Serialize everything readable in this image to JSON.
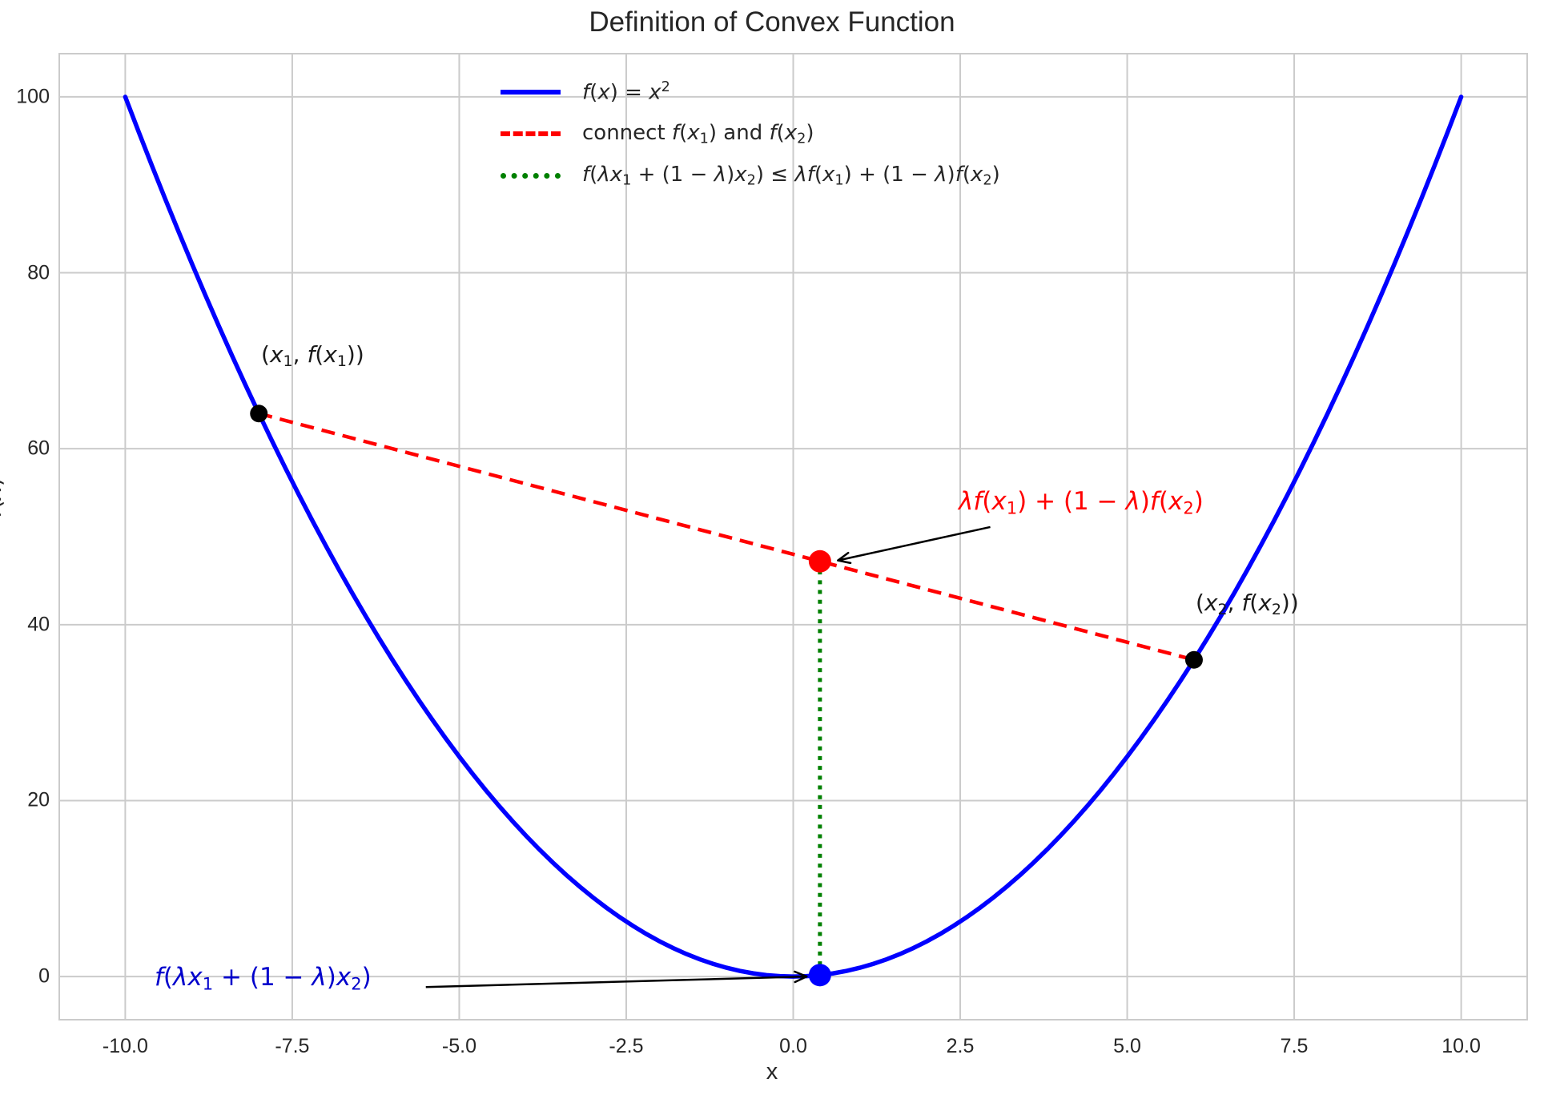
{
  "chart_data": {
    "type": "line",
    "title": "Definition of Convex Function",
    "xlabel": "x",
    "ylabel": "f(x)",
    "xlim": [
      -11,
      11
    ],
    "ylim": [
      -5,
      105
    ],
    "grid": true,
    "legend_position": "upper center-left, no frame",
    "x_ticks": [
      {
        "v": -10,
        "label": "-10.0"
      },
      {
        "v": -7.5,
        "label": "-7.5"
      },
      {
        "v": -5,
        "label": "-5.0"
      },
      {
        "v": -2.5,
        "label": "-2.5"
      },
      {
        "v": 0,
        "label": "0.0"
      },
      {
        "v": 2.5,
        "label": "2.5"
      },
      {
        "v": 5,
        "label": "5.0"
      },
      {
        "v": 7.5,
        "label": "7.5"
      },
      {
        "v": 10,
        "label": "10.0"
      }
    ],
    "y_ticks": [
      {
        "v": 0,
        "label": "0"
      },
      {
        "v": 20,
        "label": "20"
      },
      {
        "v": 40,
        "label": "40"
      },
      {
        "v": 60,
        "label": "60"
      },
      {
        "v": 80,
        "label": "80"
      },
      {
        "v": 100,
        "label": "100"
      }
    ],
    "lambda": 0.4,
    "x1": -8,
    "f_x1": 64,
    "x2": 6,
    "f_x2": 36,
    "x_combo": 0.4,
    "f_of_combo": 0.16,
    "chord_value": 47.2,
    "series": [
      {
        "name": "f(x) = x^2",
        "kind": "function",
        "fn": "square",
        "x_range": [
          -10,
          10
        ],
        "sample_step": 0.2,
        "color": "#0000ff",
        "style": "solid",
        "width": 5.5
      },
      {
        "name": "connect f(x1) and f(x2)",
        "kind": "segment",
        "points": [
          [
            -8,
            64
          ],
          [
            6,
            36
          ]
        ],
        "color": "#ff0000",
        "style": "dashed",
        "width": 4.5
      },
      {
        "name": "f(lambda*x1+(1-lambda)*x2) <= lambda*f(x1)+(1-lambda)*f(x2)",
        "kind": "segment",
        "points": [
          [
            0.4,
            0.16
          ],
          [
            0.4,
            47.2
          ]
        ],
        "color": "#008000",
        "style": "dotted",
        "width": 5
      }
    ],
    "scatter": [
      {
        "x": -8,
        "y": 64,
        "color": "#000000",
        "r": 11,
        "name": "(x1, f(x1))"
      },
      {
        "x": 6,
        "y": 36,
        "color": "#000000",
        "r": 11,
        "name": "(x2, f(x2))"
      },
      {
        "x": 0.4,
        "y": 47.2,
        "color": "#ff0000",
        "r": 14,
        "name": "lambda f(x1)+(1-lambda) f(x2)"
      },
      {
        "x": 0.4,
        "y": 0.16,
        "color": "#0000ff",
        "r": 14,
        "name": "f(lambda x1+(1-lambda) x2)"
      }
    ],
    "arrows": [
      {
        "tail": [
          2.95,
          51.1
        ],
        "tip": [
          0.67,
          47.3
        ],
        "color": "#000000"
      },
      {
        "tail": [
          -5.5,
          -1.2
        ],
        "tip": [
          0.2,
          0.0
        ],
        "color": "#000000"
      }
    ],
    "annotations": [
      {
        "text": "(x₁, f(x₁))",
        "at": [
          -8,
          64
        ],
        "color": "#1a1a1a"
      },
      {
        "text": "(x₂, f(x₂))",
        "at": [
          6,
          36
        ],
        "color": "#1a1a1a"
      },
      {
        "text": "λf(x₁) + (1 − λ)f(x₂)",
        "at": [
          0.4,
          47.2
        ],
        "color": "#ff0000"
      },
      {
        "text": "f(λx₁ + (1 − λ)x₂)",
        "at": [
          0.4,
          0.16
        ],
        "color": "#0000cc"
      }
    ]
  },
  "colors": {
    "text": "#262626",
    "grid": "#cbcbcb",
    "curve_blue": "#0000ff",
    "chord_red": "#ff0000",
    "inequality_green": "#008000",
    "point_black": "#000000"
  },
  "legend": {
    "items": [
      {
        "text": "f(x) = x²"
      },
      {
        "text": "connect f(x₁) and f(x₂)"
      },
      {
        "text": "f(λx₁ + (1 − λ)x₂) ≤ λf(x₁) + (1 − λ)f(x₂)"
      }
    ]
  },
  "labels": {
    "legend0": [
      [
        "f",
        "i"
      ],
      [
        "(",
        "n"
      ],
      [
        "x",
        "i"
      ],
      [
        ") = ",
        "n"
      ],
      [
        "x",
        "i"
      ],
      [
        "2",
        "sup"
      ]
    ],
    "legend1": [
      [
        "connect ",
        "n"
      ],
      [
        "f",
        "i"
      ],
      [
        "(",
        "n"
      ],
      [
        "x",
        "i"
      ],
      [
        "1",
        "sub"
      ],
      [
        ") and ",
        "n"
      ],
      [
        "f",
        "i"
      ],
      [
        "(",
        "n"
      ],
      [
        "x",
        "i"
      ],
      [
        "2",
        "sub"
      ],
      [
        ")",
        "n"
      ]
    ],
    "legend2": [
      [
        "f",
        "i"
      ],
      [
        "(",
        "n"
      ],
      [
        "λ",
        "i"
      ],
      [
        "x",
        "i"
      ],
      [
        "1",
        "sub"
      ],
      [
        " + (1 − ",
        "n"
      ],
      [
        "λ",
        "i"
      ],
      [
        ")",
        "n"
      ],
      [
        "x",
        "i"
      ],
      [
        "2",
        "sub"
      ],
      [
        ") ≤ ",
        "n"
      ],
      [
        "λ",
        "i"
      ],
      [
        "f",
        "i"
      ],
      [
        "(",
        "n"
      ],
      [
        "x",
        "i"
      ],
      [
        "1",
        "sub"
      ],
      [
        ") + (1 − ",
        "n"
      ],
      [
        "λ",
        "i"
      ],
      [
        ")",
        "n"
      ],
      [
        "f",
        "i"
      ],
      [
        "(",
        "n"
      ],
      [
        "x",
        "i"
      ],
      [
        "2",
        "sub"
      ],
      [
        ")",
        "n"
      ]
    ],
    "ann_x1": [
      [
        "(",
        "n"
      ],
      [
        "x",
        "i"
      ],
      [
        "1",
        "sub"
      ],
      [
        ", ",
        "n"
      ],
      [
        "f",
        "i"
      ],
      [
        "(",
        "n"
      ],
      [
        "x",
        "i"
      ],
      [
        "1",
        "sub"
      ],
      [
        "))",
        "n"
      ]
    ],
    "ann_x2": [
      [
        "(",
        "n"
      ],
      [
        "x",
        "i"
      ],
      [
        "2",
        "sub"
      ],
      [
        ", ",
        "n"
      ],
      [
        "f",
        "i"
      ],
      [
        "(",
        "n"
      ],
      [
        "x",
        "i"
      ],
      [
        "2",
        "sub"
      ],
      [
        "))",
        "n"
      ]
    ],
    "ann_red": [
      [
        "λ",
        "i"
      ],
      [
        "f",
        "i"
      ],
      [
        "(",
        "n"
      ],
      [
        "x",
        "i"
      ],
      [
        "1",
        "sub"
      ],
      [
        ") + (1 − ",
        "n"
      ],
      [
        "λ",
        "i"
      ],
      [
        ")",
        "n"
      ],
      [
        "f",
        "i"
      ],
      [
        "(",
        "n"
      ],
      [
        "x",
        "i"
      ],
      [
        "2",
        "sub"
      ],
      [
        ")",
        "n"
      ]
    ],
    "ann_blue": [
      [
        "f",
        "i"
      ],
      [
        "(",
        "n"
      ],
      [
        "λ",
        "i"
      ],
      [
        "x",
        "i"
      ],
      [
        "1",
        "sub"
      ],
      [
        " + (1 − ",
        "n"
      ],
      [
        "λ",
        "i"
      ],
      [
        ")",
        "n"
      ],
      [
        "x",
        "i"
      ],
      [
        "2",
        "sub"
      ],
      [
        ")",
        "n"
      ]
    ],
    "ylabel": [
      [
        "f",
        "i"
      ],
      [
        "(",
        "n"
      ],
      [
        "x",
        "i"
      ],
      [
        ")",
        "n"
      ]
    ]
  }
}
